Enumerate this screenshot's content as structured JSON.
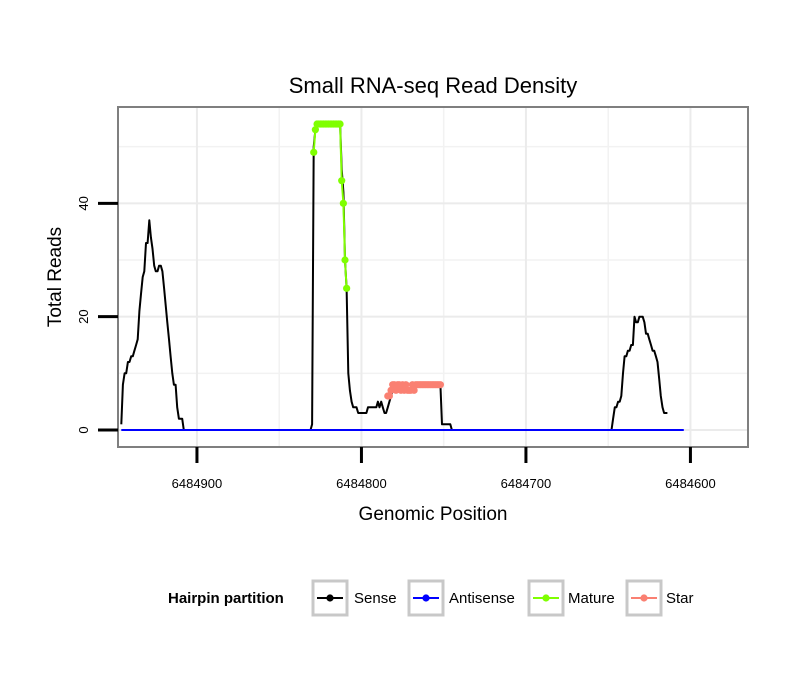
{
  "chart_data": {
    "type": "line",
    "title": "Small RNA-seq Read Density",
    "xlabel": "Genomic Position",
    "ylabel": "Total Reads",
    "x_reversed": true,
    "xlim": [
      6484948,
      6484565
    ],
    "ylim": [
      -3,
      57
    ],
    "x_ticks": [
      {
        "value": 6484900,
        "label": "6484900"
      },
      {
        "value": 6484800,
        "label": "6484800"
      },
      {
        "value": 6484700,
        "label": "6484700"
      },
      {
        "value": 6484600,
        "label": "6484600"
      }
    ],
    "y_ticks": [
      {
        "value": 0,
        "label": "0"
      },
      {
        "value": 20,
        "label": "20"
      },
      {
        "value": 40,
        "label": "40"
      }
    ],
    "x_minor_grid": [
      6484850,
      6484750,
      6484650
    ],
    "y_minor_grid": [
      10,
      30,
      50
    ],
    "legend": {
      "title": "Hairpin partition",
      "position": "bottom",
      "entries": [
        {
          "label": "Sense",
          "color": "#000000"
        },
        {
          "label": "Antisense",
          "color": "#0000ff"
        },
        {
          "label": "Mature",
          "color": "#7fff00"
        },
        {
          "label": "Star",
          "color": "#fa8072"
        }
      ]
    },
    "series": [
      {
        "name": "Sense",
        "color": "#000000",
        "points": false,
        "data": [
          [
            6484946,
            1
          ],
          [
            6484945,
            8
          ],
          [
            6484944,
            10
          ],
          [
            6484943,
            10
          ],
          [
            6484942,
            12
          ],
          [
            6484941,
            12
          ],
          [
            6484940,
            13
          ],
          [
            6484939,
            13
          ],
          [
            6484938,
            14
          ],
          [
            6484937,
            15
          ],
          [
            6484936,
            16
          ],
          [
            6484935,
            21
          ],
          [
            6484934,
            24
          ],
          [
            6484933,
            27
          ],
          [
            6484932,
            28
          ],
          [
            6484931,
            33
          ],
          [
            6484930,
            33
          ],
          [
            6484929,
            37
          ],
          [
            6484928,
            34
          ],
          [
            6484927,
            32
          ],
          [
            6484926,
            29
          ],
          [
            6484925,
            28
          ],
          [
            6484924,
            28
          ],
          [
            6484923,
            29
          ],
          [
            6484922,
            29
          ],
          [
            6484921,
            28
          ],
          [
            6484920,
            25
          ],
          [
            6484919,
            22
          ],
          [
            6484918,
            19
          ],
          [
            6484917,
            16
          ],
          [
            6484916,
            13
          ],
          [
            6484915,
            10
          ],
          [
            6484914,
            8
          ],
          [
            6484913,
            8
          ],
          [
            6484912,
            4
          ],
          [
            6484911,
            2
          ],
          [
            6484909,
            2
          ],
          [
            6484908,
            0
          ],
          [
            6484850,
            0
          ],
          [
            6484831,
            0
          ],
          [
            6484830,
            1
          ],
          [
            6484829,
            50
          ],
          [
            6484828,
            53
          ],
          [
            6484827,
            54
          ],
          [
            6484813,
            54
          ],
          [
            6484812,
            46
          ],
          [
            6484811,
            42
          ],
          [
            6484810,
            30
          ],
          [
            6484809,
            25
          ],
          [
            6484808,
            10
          ],
          [
            6484807,
            7
          ],
          [
            6484806,
            5
          ],
          [
            6484805,
            4
          ],
          [
            6484803,
            4
          ],
          [
            6484802,
            3
          ],
          [
            6484797,
            3
          ],
          [
            6484796,
            4
          ],
          [
            6484791,
            4
          ],
          [
            6484790,
            5
          ],
          [
            6484789,
            4
          ],
          [
            6484788,
            5
          ],
          [
            6484787,
            4
          ],
          [
            6484786,
            3
          ],
          [
            6484785,
            3
          ],
          [
            6484784,
            4
          ],
          [
            6484783,
            5
          ],
          [
            6484781,
            7
          ],
          [
            6484777,
            8
          ],
          [
            6484752,
            8
          ],
          [
            6484751,
            1
          ],
          [
            6484746,
            1
          ],
          [
            6484745,
            0
          ],
          [
            6484648,
            0
          ],
          [
            6484647,
            2
          ],
          [
            6484646,
            4
          ],
          [
            6484645,
            4
          ],
          [
            6484644,
            5
          ],
          [
            6484643,
            5
          ],
          [
            6484642,
            6
          ],
          [
            6484641,
            10
          ],
          [
            6484640,
            13
          ],
          [
            6484639,
            13
          ],
          [
            6484638,
            14
          ],
          [
            6484637,
            14
          ],
          [
            6484636,
            15
          ],
          [
            6484635,
            15
          ],
          [
            6484634,
            20
          ],
          [
            6484633,
            19
          ],
          [
            6484632,
            19
          ],
          [
            6484631,
            20
          ],
          [
            6484629,
            20
          ],
          [
            6484628,
            19
          ],
          [
            6484627,
            17
          ],
          [
            6484626,
            17
          ],
          [
            6484625,
            16
          ],
          [
            6484624,
            15
          ],
          [
            6484623,
            14
          ],
          [
            6484622,
            14
          ],
          [
            6484621,
            13
          ],
          [
            6484620,
            12
          ],
          [
            6484619,
            9
          ],
          [
            6484618,
            6
          ],
          [
            6484617,
            4
          ],
          [
            6484616,
            3
          ],
          [
            6484614,
            3
          ]
        ]
      },
      {
        "name": "Antisense",
        "color": "#0000ff",
        "points": false,
        "data": [
          [
            6484946,
            0
          ],
          [
            6484604,
            0
          ]
        ]
      },
      {
        "name": "Mature",
        "color": "#7fff00",
        "points": true,
        "data": [
          [
            6484829,
            49
          ],
          [
            6484828,
            53
          ],
          [
            6484827,
            54
          ],
          [
            6484826,
            54
          ],
          [
            6484825,
            54
          ],
          [
            6484824,
            54
          ],
          [
            6484823,
            54
          ],
          [
            6484822,
            54
          ],
          [
            6484821,
            54
          ],
          [
            6484820,
            54
          ],
          [
            6484819,
            54
          ],
          [
            6484818,
            54
          ],
          [
            6484817,
            54
          ],
          [
            6484816,
            54
          ],
          [
            6484815,
            54
          ],
          [
            6484814,
            54
          ],
          [
            6484813,
            54
          ],
          [
            6484812,
            44
          ],
          [
            6484811,
            40
          ],
          [
            6484810,
            30
          ],
          [
            6484809,
            25
          ]
        ]
      },
      {
        "name": "Star",
        "color": "#fa8072",
        "points": true,
        "data": [
          [
            6484784,
            6
          ],
          [
            6484783,
            6
          ],
          [
            6484782,
            7
          ],
          [
            6484781,
            8
          ],
          [
            6484780,
            8
          ],
          [
            6484779,
            7
          ],
          [
            6484778,
            8
          ],
          [
            6484777,
            8
          ],
          [
            6484776,
            7
          ],
          [
            6484775,
            8
          ],
          [
            6484774,
            7
          ],
          [
            6484773,
            8
          ],
          [
            6484772,
            7
          ],
          [
            6484771,
            7
          ],
          [
            6484770,
            7
          ],
          [
            6484769,
            8
          ],
          [
            6484768,
            7
          ],
          [
            6484767,
            8
          ],
          [
            6484766,
            8
          ],
          [
            6484765,
            8
          ],
          [
            6484764,
            8
          ],
          [
            6484763,
            8
          ],
          [
            6484762,
            8
          ],
          [
            6484761,
            8
          ],
          [
            6484760,
            8
          ],
          [
            6484759,
            8
          ],
          [
            6484758,
            8
          ],
          [
            6484757,
            8
          ],
          [
            6484756,
            8
          ],
          [
            6484755,
            8
          ],
          [
            6484754,
            8
          ],
          [
            6484753,
            8
          ],
          [
            6484752,
            8
          ]
        ]
      }
    ]
  }
}
